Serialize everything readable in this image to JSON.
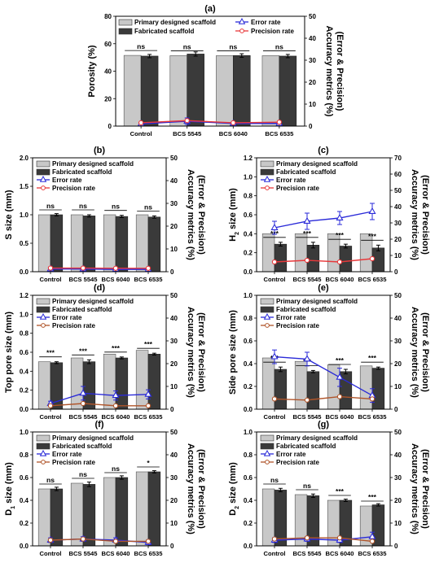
{
  "colors": {
    "primary": "#c8c8c8",
    "fabricated": "#3a3a3a",
    "error": "#2a2ad8",
    "precision_red": "#e8383a",
    "precision_brown": "#b0552a"
  },
  "legend_labels": {
    "primary": "Primary designed scaffold",
    "fabricated": "Fabricated scaffold",
    "error": "Error rate",
    "precision": "Precision rate"
  },
  "right_axis_title": [
    "Accuracy metrics (%)",
    "(Error & Precision)"
  ],
  "chart_data": [
    {
      "panel": "(a)",
      "type": "bar",
      "legend_layout": "two-col",
      "ylabel": "Porosity (%)",
      "ylabel_sub": "",
      "categories": [
        "Control",
        "BCS 5545",
        "BCS 6040",
        "BCS 6535"
      ],
      "ylim": [
        0,
        80
      ],
      "yticks": [
        0,
        20,
        40,
        60,
        80
      ],
      "y2lim": [
        0,
        50
      ],
      "y2ticks": [
        0,
        10,
        20,
        30,
        40,
        50
      ],
      "series": [
        {
          "name": "Primary designed scaffold",
          "values": [
            51.5,
            51.3,
            51.3,
            51.3
          ]
        },
        {
          "name": "Fabricated scaffold",
          "values": [
            51,
            52.5,
            51.4,
            51
          ],
          "err": [
            1.2,
            1.5,
            1.3,
            1.2
          ]
        }
      ],
      "error_rate": [
        1.0,
        2.2,
        1.2,
        1.2
      ],
      "error_rate_err": [
        0.5,
        1.5,
        0.5,
        0.5
      ],
      "precision_rate": [
        1.5,
        2.5,
        1.5,
        1.8
      ],
      "precision_color": "red",
      "significance": [
        "ns",
        "ns",
        "ns",
        "ns"
      ]
    },
    {
      "panel": "(b)",
      "type": "bar",
      "legend_layout": "stacked",
      "ylabel": "S size (mm)",
      "ylabel_sub": "",
      "categories": [
        "Control",
        "BCS 5545",
        "BCS 6040",
        "BCS 6535"
      ],
      "ylim": [
        0,
        2.0
      ],
      "yticks": [
        0.0,
        0.5,
        1.0,
        1.5,
        2.0
      ],
      "y2lim": [
        0,
        50
      ],
      "y2ticks": [
        0,
        10,
        20,
        30,
        40,
        50
      ],
      "series": [
        {
          "name": "Primary designed scaffold",
          "values": [
            1.0,
            1.0,
            1.0,
            1.0
          ]
        },
        {
          "name": "Fabricated scaffold",
          "values": [
            1.0,
            0.98,
            0.97,
            0.96
          ],
          "err": [
            0.02,
            0.02,
            0.02,
            0.02
          ]
        }
      ],
      "error_rate": [
        1.2,
        1.2,
        1.0,
        1.0
      ],
      "error_rate_err": [
        0.3,
        0.3,
        0.3,
        0.3
      ],
      "precision_rate": [
        1.6,
        1.6,
        1.5,
        1.5
      ],
      "precision_color": "red",
      "significance": [
        "ns",
        "ns",
        "ns",
        "ns"
      ]
    },
    {
      "panel": "(c)",
      "type": "bar",
      "legend_layout": "stacked",
      "ylabel": "H",
      "ylabel_sub": "2",
      "ylabel_rest": " size (mm)",
      "categories": [
        "Control",
        "BCS 5545",
        "BCS 6040",
        "BCS 6535"
      ],
      "ylim": [
        0,
        1.2
      ],
      "yticks": [
        0.0,
        0.2,
        0.4,
        0.6,
        0.8,
        1.0,
        1.2
      ],
      "y2lim": [
        0,
        70
      ],
      "y2ticks": [
        0,
        10,
        20,
        30,
        40,
        50,
        60,
        70
      ],
      "series": [
        {
          "name": "Primary designed scaffold",
          "values": [
            0.4,
            0.4,
            0.4,
            0.4
          ]
        },
        {
          "name": "Fabricated scaffold",
          "values": [
            0.29,
            0.28,
            0.27,
            0.25
          ],
          "err": [
            0.02,
            0.03,
            0.02,
            0.03
          ]
        }
      ],
      "error_rate": [
        27,
        31,
        33,
        37
      ],
      "error_rate_err": [
        4,
        5,
        4,
        5
      ],
      "precision_rate": [
        6,
        7,
        6,
        8
      ],
      "precision_color": "red",
      "significance": [
        "***",
        "***",
        "***",
        "***"
      ]
    },
    {
      "panel": "(d)",
      "type": "bar",
      "legend_layout": "stacked",
      "ylabel": "Top pore size (mm)",
      "ylabel_sub": "",
      "categories": [
        "Control",
        "BCS 5545",
        "BCS 6040",
        "BCS 6535"
      ],
      "ylim": [
        0,
        1.2
      ],
      "yticks": [
        0.0,
        0.2,
        0.4,
        0.6,
        0.8,
        1.0,
        1.2
      ],
      "y2lim": [
        0,
        50
      ],
      "y2ticks": [
        0,
        10,
        20,
        30,
        40,
        50
      ],
      "series": [
        {
          "name": "Primary designed scaffold",
          "values": [
            0.5,
            0.54,
            0.58,
            0.62
          ]
        },
        {
          "name": "Fabricated scaffold",
          "values": [
            0.49,
            0.5,
            0.54,
            0.58
          ],
          "err": [
            0.01,
            0.02,
            0.01,
            0.01
          ]
        }
      ],
      "error_rate": [
        2.5,
        7,
        6,
        6.5
      ],
      "error_rate_err": [
        1,
        3,
        2,
        2
      ],
      "precision_rate": [
        1.5,
        2.5,
        1.5,
        1.5
      ],
      "precision_color": "brown",
      "significance": [
        "***",
        "***",
        "***",
        "***"
      ]
    },
    {
      "panel": "(e)",
      "type": "bar",
      "legend_layout": "stacked",
      "ylabel": "Side pore size (mm)",
      "ylabel_sub": "",
      "categories": [
        "Control",
        "BCS 5545",
        "BCS 6040",
        "BCS 6535"
      ],
      "ylim": [
        0,
        1.0
      ],
      "yticks": [
        0.0,
        0.2,
        0.4,
        0.6,
        0.8,
        1.0
      ],
      "y2lim": [
        0,
        50
      ],
      "y2ticks": [
        0,
        10,
        20,
        30,
        40,
        50
      ],
      "series": [
        {
          "name": "Primary designed scaffold",
          "values": [
            0.45,
            0.42,
            0.39,
            0.38
          ]
        },
        {
          "name": "Fabricated scaffold",
          "values": [
            0.35,
            0.33,
            0.33,
            0.36
          ],
          "err": [
            0.02,
            0.01,
            0.02,
            0.01
          ]
        }
      ],
      "error_rate": [
        23,
        22,
        14,
        6
      ],
      "error_rate_err": [
        3,
        3,
        4,
        3
      ],
      "precision_rate": [
        4.5,
        4,
        5.5,
        4.5
      ],
      "precision_color": "brown",
      "significance": [
        "***",
        "***",
        "***",
        "***"
      ]
    },
    {
      "panel": "(f)",
      "type": "bar",
      "legend_layout": "stacked",
      "ylabel": "D",
      "ylabel_sub": "1",
      "ylabel_rest": " size (mm)",
      "categories": [
        "Control",
        "BCS 5545",
        "BCS 6040",
        "BCS 6535"
      ],
      "ylim": [
        0,
        1.0
      ],
      "yticks": [
        0.0,
        0.2,
        0.4,
        0.6,
        0.8,
        1.0
      ],
      "y2lim": [
        0,
        50
      ],
      "y2ticks": [
        0,
        10,
        20,
        30,
        40,
        50
      ],
      "series": [
        {
          "name": "Primary designed scaffold",
          "values": [
            0.5,
            0.55,
            0.6,
            0.65
          ]
        },
        {
          "name": "Fabricated scaffold",
          "values": [
            0.5,
            0.54,
            0.6,
            0.65
          ],
          "err": [
            0.015,
            0.02,
            0.015,
            0.01
          ]
        }
      ],
      "error_rate": [
        2.5,
        3,
        2.5,
        1.5
      ],
      "error_rate_err": [
        1,
        1,
        1,
        1
      ],
      "precision_rate": [
        2.5,
        3,
        2,
        2
      ],
      "precision_color": "brown",
      "significance": [
        "ns",
        "ns",
        "ns",
        "*"
      ]
    },
    {
      "panel": "(g)",
      "type": "bar",
      "legend_layout": "stacked",
      "ylabel": "D",
      "ylabel_sub": "2",
      "ylabel_rest": " size (mm)",
      "categories": [
        "Control",
        "BCS 5545",
        "BCS 6040",
        "BCS 6535"
      ],
      "ylim": [
        0,
        1.0
      ],
      "yticks": [
        0.0,
        0.2,
        0.4,
        0.6,
        0.8,
        1.0
      ],
      "y2lim": [
        0,
        50
      ],
      "y2ticks": [
        0,
        10,
        20,
        30,
        40,
        50
      ],
      "series": [
        {
          "name": "Primary designed scaffold",
          "values": [
            0.5,
            0.45,
            0.4,
            0.35
          ]
        },
        {
          "name": "Fabricated scaffold",
          "values": [
            0.49,
            0.44,
            0.4,
            0.36
          ],
          "err": [
            0.015,
            0.015,
            0.01,
            0.01
          ]
        }
      ],
      "error_rate": [
        2.5,
        3,
        2.5,
        4
      ],
      "error_rate_err": [
        1,
        1,
        1,
        2
      ],
      "precision_rate": [
        3,
        3.5,
        3.5,
        2
      ],
      "precision_color": "brown",
      "significance": [
        "ns",
        "ns",
        "***",
        "***"
      ]
    }
  ]
}
